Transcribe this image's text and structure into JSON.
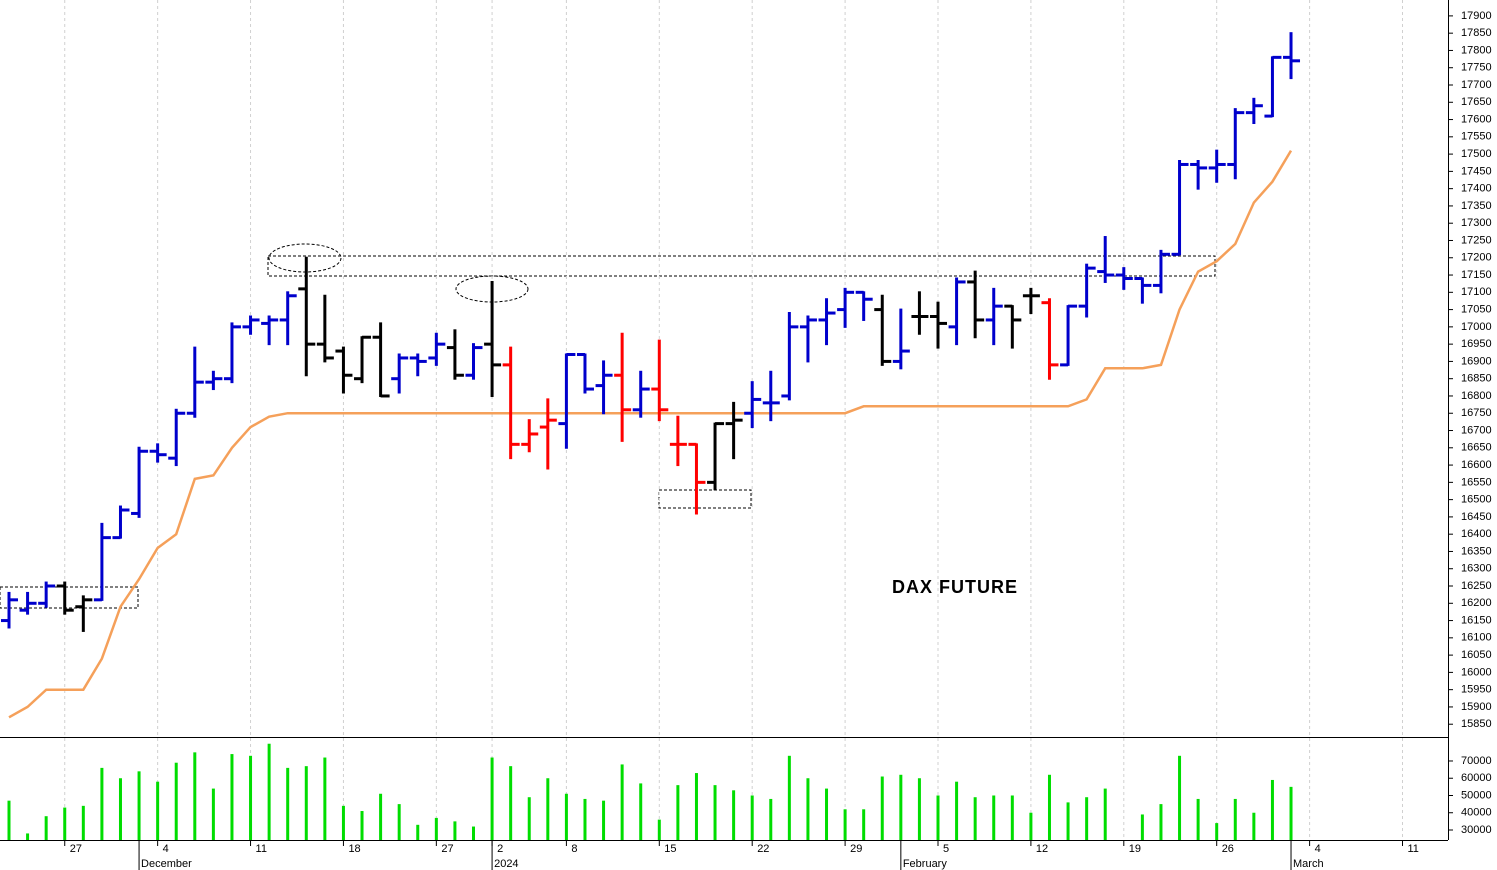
{
  "chart_data": [
    {
      "type": "ohlc",
      "annotation": "DAX FUTURE",
      "categories": [
        null,
        null,
        null,
        "27",
        null,
        null,
        null,
        null,
        "4",
        null,
        null,
        null,
        null,
        "11",
        null,
        null,
        null,
        null,
        "18",
        null,
        null,
        null,
        null,
        "27",
        null,
        null,
        "2",
        null,
        null,
        null,
        "8",
        null,
        null,
        null,
        null,
        "15",
        null,
        null,
        null,
        null,
        "22",
        null,
        null,
        null,
        null,
        "29",
        null,
        null,
        null,
        null,
        "5",
        null,
        null,
        null,
        null,
        "12",
        null,
        null,
        null,
        null,
        "19",
        null,
        null,
        null,
        null,
        "26",
        null,
        null,
        null,
        null,
        "4",
        null,
        null,
        null,
        null,
        "11",
        null,
        null
      ],
      "months": [
        null,
        null,
        null,
        null,
        null,
        null,
        null,
        "December",
        null,
        null,
        null,
        null,
        null,
        null,
        null,
        null,
        null,
        null,
        null,
        null,
        null,
        null,
        null,
        null,
        null,
        null,
        "2024",
        null,
        null,
        null,
        null,
        null,
        null,
        null,
        null,
        null,
        null,
        null,
        null,
        null,
        null,
        null,
        null,
        null,
        null,
        null,
        null,
        null,
        "February",
        null,
        null,
        null,
        null,
        null,
        null,
        null,
        null,
        null,
        null,
        null,
        null,
        null,
        null,
        null,
        null,
        null,
        null,
        null,
        null,
        "March",
        null,
        null,
        null,
        null,
        null,
        null,
        null,
        null
      ],
      "open": [
        16150,
        16180,
        16200,
        16250,
        16190,
        16210,
        16390,
        16460,
        16640,
        16620,
        16750,
        16840,
        16850,
        17000,
        17010,
        17020,
        17110,
        16950,
        16930,
        16850,
        16970,
        16850,
        16910,
        16910,
        16940,
        16860,
        16950,
        16890,
        16660,
        16710,
        16720,
        16920,
        16830,
        16860,
        16760,
        16820,
        16660,
        16660,
        16550,
        16720,
        16750,
        16780,
        16800,
        17000,
        17020,
        17050,
        17100,
        17050,
        16900,
        17030,
        17030,
        17000,
        17130,
        17020,
        17060,
        17090,
        17070,
        16890,
        17060,
        17160,
        17150,
        17140,
        17120,
        17210,
        17470,
        17460,
        17470,
        17620,
        17610,
        17780,
        null,
        null,
        null,
        null,
        null,
        null,
        null,
        null
      ],
      "high": [
        16230,
        16230,
        16260,
        16260,
        16220,
        16430,
        16480,
        16650,
        16660,
        16760,
        16940,
        16870,
        17010,
        17030,
        17030,
        17100,
        17200,
        17090,
        16940,
        16970,
        17010,
        16920,
        16920,
        16980,
        16990,
        16950,
        17130,
        16940,
        16730,
        16790,
        16920,
        16920,
        16900,
        16980,
        16870,
        16960,
        16740,
        16660,
        16720,
        16780,
        16840,
        16870,
        17040,
        17030,
        17080,
        17110,
        17100,
        17090,
        17050,
        17100,
        17070,
        17140,
        17160,
        17110,
        17060,
        17110,
        17080,
        17060,
        17180,
        17260,
        17170,
        17140,
        17220,
        17480,
        17480,
        17510,
        17630,
        17660,
        17780,
        17850,
        null,
        null,
        null,
        null,
        null,
        null,
        null,
        null
      ],
      "low": [
        16130,
        16170,
        16190,
        16170,
        16120,
        16210,
        16390,
        16450,
        16610,
        16600,
        16740,
        16820,
        16840,
        16980,
        16950,
        16950,
        16860,
        16900,
        16810,
        16840,
        16800,
        16810,
        16860,
        16890,
        16850,
        16850,
        16800,
        16620,
        16640,
        16590,
        16650,
        16810,
        16750,
        16670,
        16740,
        16730,
        16600,
        16460,
        16530,
        16620,
        16710,
        16730,
        16790,
        16900,
        16950,
        17000,
        17020,
        16890,
        16880,
        16980,
        16940,
        16950,
        16970,
        16950,
        16940,
        17040,
        16850,
        16890,
        17030,
        17130,
        17110,
        17070,
        17100,
        17210,
        17400,
        17420,
        17430,
        17590,
        17610,
        17720,
        null,
        null,
        null,
        null,
        null,
        null,
        null,
        null
      ],
      "close": [
        16210,
        16200,
        16250,
        16180,
        16210,
        16390,
        16470,
        16640,
        16630,
        16750,
        16840,
        16850,
        17000,
        17020,
        17020,
        17090,
        16950,
        16910,
        16860,
        16970,
        16800,
        16910,
        16900,
        16950,
        16860,
        16940,
        16890,
        16660,
        16690,
        16730,
        16920,
        16820,
        16860,
        16760,
        16820,
        16760,
        16660,
        16550,
        16720,
        16730,
        16790,
        16780,
        17000,
        17020,
        17040,
        17100,
        17080,
        16900,
        16930,
        17030,
        17010,
        17130,
        17020,
        17060,
        17020,
        17090,
        16890,
        17060,
        17170,
        17150,
        17140,
        17120,
        17210,
        17470,
        17460,
        17470,
        17620,
        17640,
        17780,
        17770,
        null,
        null,
        null,
        null,
        null,
        null,
        null,
        null
      ],
      "bar_colors": [
        "#0000cc",
        "#0000cc",
        "#0000cc",
        "#000000",
        "#000000",
        "#0000cc",
        "#0000cc",
        "#0000cc",
        "#0000cc",
        "#0000cc",
        "#0000cc",
        "#0000cc",
        "#0000cc",
        "#0000cc",
        "#0000cc",
        "#0000cc",
        "#000000",
        "#000000",
        "#000000",
        "#000000",
        "#000000",
        "#0000cc",
        "#0000cc",
        "#0000cc",
        "#000000",
        "#0000cc",
        "#000000",
        "#ff0000",
        "#ff0000",
        "#ff0000",
        "#0000cc",
        "#0000cc",
        "#0000cc",
        "#ff0000",
        "#0000cc",
        "#ff0000",
        "#ff0000",
        "#ff0000",
        "#000000",
        "#000000",
        "#0000cc",
        "#0000cc",
        "#0000cc",
        "#0000cc",
        "#0000cc",
        "#0000cc",
        "#0000cc",
        "#000000",
        "#0000cc",
        "#000000",
        "#000000",
        "#0000cc",
        "#000000",
        "#0000cc",
        "#000000",
        "#000000",
        "#ff0000",
        "#0000cc",
        "#0000cc",
        "#0000cc",
        "#0000cc",
        "#0000cc",
        "#0000cc",
        "#0000cc",
        "#0000cc",
        "#0000cc",
        "#0000cc",
        "#0000cc",
        "#0000cc",
        "#0000cc",
        null,
        null,
        null,
        null,
        null,
        null,
        null,
        null
      ],
      "line": {
        "color": "#f5a05a",
        "values": [
          15870,
          15900,
          15950,
          15950,
          15950,
          16040,
          16190,
          16270,
          16360,
          16400,
          16560,
          16570,
          16650,
          16710,
          16740,
          16750,
          16750,
          16750,
          16750,
          16750,
          16750,
          16750,
          16750,
          16750,
          16750,
          16750,
          16750,
          16750,
          16750,
          16750,
          16750,
          16750,
          16750,
          16750,
          16750,
          16750,
          16750,
          16750,
          16750,
          16750,
          16750,
          16750,
          16750,
          16750,
          16750,
          16750,
          16770,
          16770,
          16770,
          16770,
          16770,
          16770,
          16770,
          16770,
          16770,
          16770,
          16770,
          16770,
          16790,
          16880,
          16880,
          16880,
          16890,
          17050,
          17160,
          17190,
          17240,
          17360,
          17420,
          17510,
          null,
          null,
          null,
          null,
          null,
          null,
          null,
          null
        ]
      },
      "ylim": [
        15813,
        17946
      ],
      "yticks": [
        15850,
        15900,
        15950,
        16000,
        16050,
        16100,
        16150,
        16200,
        16250,
        16300,
        16350,
        16400,
        16450,
        16500,
        16550,
        16600,
        16650,
        16700,
        16750,
        16800,
        16850,
        16900,
        16950,
        17000,
        17050,
        17100,
        17150,
        17200,
        17250,
        17300,
        17350,
        17400,
        17450,
        17500,
        17550,
        17600,
        17650,
        17700,
        17750,
        17800,
        17850,
        17900
      ],
      "grid": true
    },
    {
      "type": "bar",
      "color": "#00dd00",
      "values": [
        47000,
        28000,
        38000,
        43000,
        44000,
        66000,
        60000,
        64000,
        58000,
        69000,
        75000,
        54000,
        74000,
        73000,
        80000,
        66000,
        67000,
        72000,
        44000,
        41000,
        51000,
        45000,
        33000,
        37000,
        35000,
        32000,
        72000,
        67000,
        49000,
        60000,
        51000,
        48000,
        47000,
        68000,
        57000,
        36000,
        56000,
        63000,
        56000,
        53000,
        50000,
        48000,
        73000,
        60000,
        54000,
        42000,
        42000,
        61000,
        62000,
        60000,
        50000,
        58000,
        49000,
        50000,
        50000,
        40000,
        62000,
        46000,
        49000,
        54000,
        null,
        39000,
        45000,
        73000,
        48000,
        34000,
        48000,
        40000,
        59000,
        55000,
        null,
        null,
        null,
        null,
        null,
        null,
        null,
        null
      ],
      "ylim": [
        24200,
        83900
      ],
      "yticks": [
        30000,
        40000,
        50000,
        60000,
        70000
      ]
    }
  ]
}
